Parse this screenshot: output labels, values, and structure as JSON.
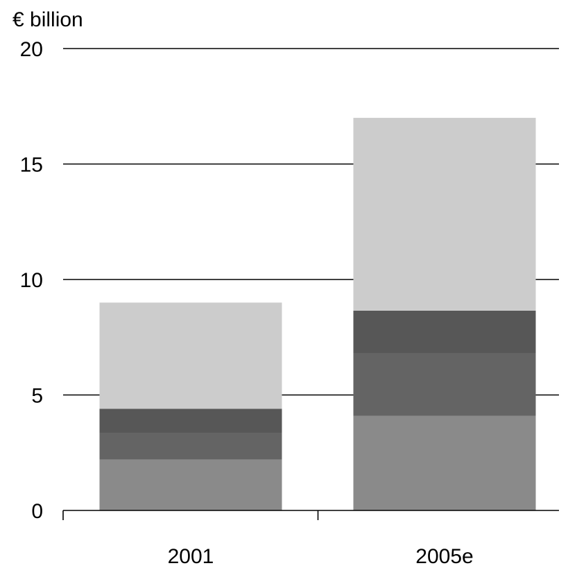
{
  "chart_data": {
    "type": "bar",
    "stacked": true,
    "ylabel": "€ billion",
    "ylim": [
      0,
      20
    ],
    "yticks": [
      0,
      5,
      10,
      15,
      20
    ],
    "ytick_labels": [
      "0",
      "5",
      "10",
      "15",
      "20"
    ],
    "grid": true,
    "legend": "none",
    "categories": [
      "2001",
      "2005e"
    ],
    "series": [
      {
        "color": "#8a8a8a",
        "values": [
          2.2,
          4.1
        ]
      },
      {
        "color": "#646464",
        "values": [
          1.15,
          2.7
        ]
      },
      {
        "color": "#575757",
        "values": [
          1.05,
          1.85
        ]
      },
      {
        "color": "#cccccc",
        "values": [
          4.6,
          8.35
        ]
      }
    ]
  }
}
